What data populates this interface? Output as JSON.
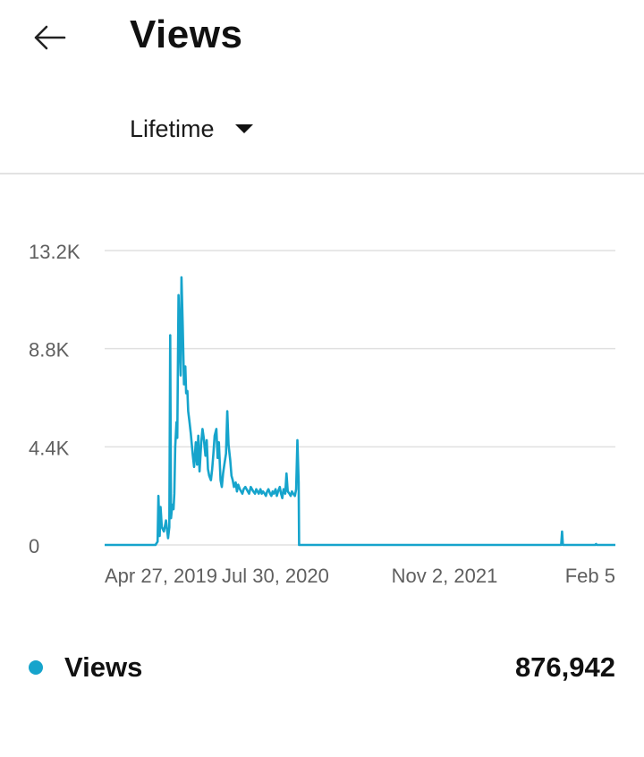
{
  "header": {
    "title": "Views",
    "back_icon": "back-arrow-icon"
  },
  "range_selector": {
    "selected": "Lifetime",
    "icon": "dropdown-triangle-icon"
  },
  "chart_data": {
    "type": "line",
    "title": "",
    "xlabel": "",
    "ylabel": "",
    "color": "#16a4cc",
    "grid": true,
    "ylim": [
      0,
      13200
    ],
    "y_ticks": [
      "13.2K",
      "8.8K",
      "4.4K",
      "0"
    ],
    "y_tick_values": [
      13200,
      8800,
      4400,
      0
    ],
    "x_ticks": [
      "Apr 27, 2019",
      "Jul 30, 2020",
      "Nov 2, 2021",
      "Feb 5"
    ],
    "series": [
      {
        "name": "Views",
        "x": [
          "2018-12-01",
          "2019-04-01",
          "2019-04-06",
          "2019-04-08",
          "2019-04-11",
          "2019-04-13",
          "2019-04-16",
          "2019-04-21",
          "2019-04-26",
          "2019-05-01",
          "2019-05-04",
          "2019-05-06",
          "2019-05-08",
          "2019-05-11",
          "2019-05-14",
          "2019-05-16",
          "2019-05-18",
          "2019-05-21",
          "2019-05-23",
          "2019-05-26",
          "2019-05-28",
          "2019-05-31",
          "2019-06-02",
          "2019-06-05",
          "2019-06-08",
          "2019-06-11",
          "2019-06-13",
          "2019-06-16",
          "2019-06-18",
          "2019-06-21",
          "2019-06-24",
          "2019-06-26",
          "2019-06-29",
          "2019-07-02",
          "2019-07-06",
          "2019-07-09",
          "2019-07-12",
          "2019-07-15",
          "2019-07-19",
          "2019-07-22",
          "2019-07-25",
          "2019-07-29",
          "2019-08-01",
          "2019-08-04",
          "2019-08-07",
          "2019-08-11",
          "2019-08-14",
          "2019-08-17",
          "2019-08-20",
          "2019-08-24",
          "2019-08-27",
          "2019-08-30",
          "2019-09-03",
          "2019-09-06",
          "2019-09-09",
          "2019-09-12",
          "2019-09-16",
          "2019-09-19",
          "2019-09-22",
          "2019-09-26",
          "2019-09-29",
          "2019-10-02",
          "2019-10-05",
          "2019-10-09",
          "2019-10-12",
          "2019-10-15",
          "2019-10-19",
          "2019-10-22",
          "2019-10-25",
          "2019-10-28",
          "2019-11-01",
          "2019-11-04",
          "2019-11-07",
          "2019-11-10",
          "2019-11-14",
          "2019-11-17",
          "2019-11-20",
          "2019-11-24",
          "2019-11-27",
          "2019-11-30",
          "2019-12-03",
          "2019-12-07",
          "2019-12-10",
          "2019-12-13",
          "2019-12-17",
          "2019-12-20",
          "2019-12-23",
          "2019-12-26",
          "2019-12-30",
          "2020-01-02",
          "2020-01-05",
          "2020-01-08",
          "2020-01-12",
          "2020-01-15",
          "2020-01-18",
          "2020-01-22",
          "2020-01-25",
          "2020-01-28",
          "2020-01-31",
          "2020-02-04",
          "2020-02-07",
          "2020-02-10",
          "2020-02-14",
          "2020-02-17",
          "2020-02-20",
          "2020-02-23",
          "2020-02-27",
          "2020-03-01",
          "2020-03-04",
          "2020-03-07",
          "2020-03-08",
          "2021-11-20",
          "2021-11-22",
          "2021-11-24",
          "2021-11-26",
          "2021-11-28",
          "2022-02-09",
          "2022-02-11",
          "2022-02-13",
          "2022-02-15",
          "2022-03-31"
        ],
        "y": [
          0,
          0,
          150,
          2200,
          400,
          1700,
          800,
          600,
          1100,
          300,
          800,
          9400,
          1200,
          1800,
          1600,
          2300,
          4400,
          5500,
          4800,
          11200,
          9500,
          7600,
          12000,
          9800,
          7200,
          8000,
          6800,
          6900,
          6000,
          5500,
          5000,
          4600,
          4000,
          3500,
          4600,
          3600,
          4900,
          3300,
          4600,
          5200,
          4800,
          4000,
          4700,
          3400,
          3100,
          2900,
          3400,
          4100,
          4900,
          5200,
          3900,
          4600,
          2900,
          2600,
          3200,
          3600,
          4100,
          6000,
          4500,
          3800,
          3100,
          2900,
          2600,
          2800,
          2400,
          2700,
          2500,
          2400,
          2300,
          2500,
          2600,
          2500,
          2400,
          2300,
          2600,
          2500,
          2400,
          2300,
          2500,
          2400,
          2300,
          2500,
          2300,
          2400,
          2300,
          2200,
          2400,
          2500,
          2300,
          2200,
          2400,
          2300,
          2500,
          2200,
          2400,
          2600,
          2300,
          2100,
          2500,
          2300,
          3200,
          2400,
          2300,
          2200,
          2400,
          2300,
          2200,
          2500,
          4700,
          2800,
          0,
          0,
          0,
          600,
          0,
          0,
          0,
          0,
          40,
          0,
          0
        ]
      }
    ]
  },
  "legend": {
    "label": "Views",
    "value": "876,942"
  }
}
